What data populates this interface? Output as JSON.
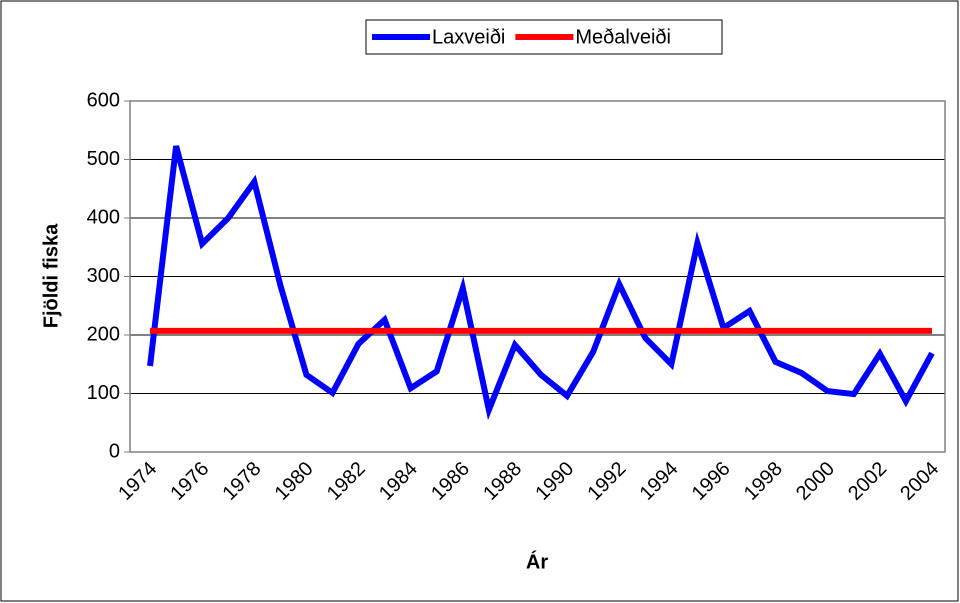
{
  "chart_data": {
    "type": "line",
    "x_label": "Ár",
    "y_label": "Fjöldi fiska",
    "categories": [
      "1974",
      null,
      "1976",
      null,
      "1978",
      null,
      "1980",
      null,
      "1982",
      null,
      "1984",
      null,
      "1986",
      null,
      "1988",
      null,
      "1990",
      null,
      "1992",
      null,
      "1994",
      null,
      "1996",
      null,
      "1998",
      null,
      "2000",
      null,
      "2002",
      null,
      "2004"
    ],
    "series": [
      {
        "name": "Laxveiði",
        "color": "#0000ff",
        "values": [
          147,
          523,
          356,
          400,
          462,
          285,
          132,
          101,
          185,
          226,
          109,
          138,
          280,
          72,
          183,
          132,
          96,
          171,
          287,
          195,
          150,
          357,
          212,
          241,
          154,
          135,
          104,
          99,
          168,
          87,
          169
        ]
      },
      {
        "name": "Meðalveiði",
        "color": "#ff0000",
        "values": [
          207,
          207,
          207,
          207,
          207,
          207,
          207,
          207,
          207,
          207,
          207,
          207,
          207,
          207,
          207,
          207,
          207,
          207,
          207,
          207,
          207,
          207,
          207,
          207,
          207,
          207,
          207,
          207,
          207,
          207,
          207
        ]
      }
    ],
    "ylim": [
      0,
      600
    ],
    "yticks": [
      0,
      100,
      200,
      300,
      400,
      500,
      600
    ],
    "grid": true,
    "legend": "top"
  }
}
